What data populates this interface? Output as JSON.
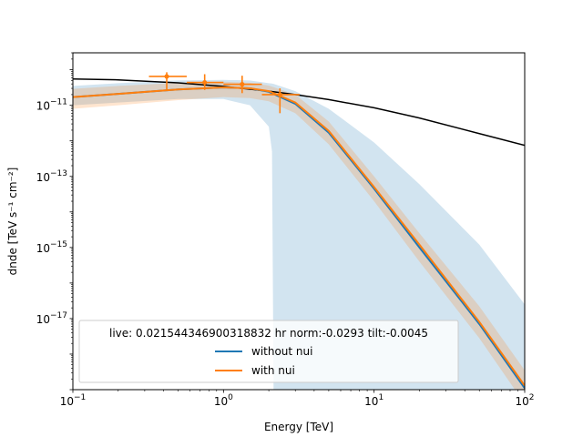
{
  "chart_data": {
    "type": "line",
    "xlabel": "Energy [TeV]",
    "ylabel": "dnde [TeV s⁻¹ cm⁻²]",
    "xscale": "log",
    "yscale": "log",
    "xlim": [
      0.1,
      100
    ],
    "ylim": [
      1e-19,
      3e-10
    ],
    "grid": false,
    "x_ticks": [
      {
        "value": 0.1,
        "base": "10",
        "exp": "−1"
      },
      {
        "value": 1,
        "base": "10",
        "exp": "0"
      },
      {
        "value": 10,
        "base": "10",
        "exp": "1"
      },
      {
        "value": 100,
        "base": "10",
        "exp": "2"
      }
    ],
    "y_ticks": [
      {
        "value": 1e-11,
        "base": "10",
        "exp": "−11"
      },
      {
        "value": 1e-13,
        "base": "10",
        "exp": "−13"
      },
      {
        "value": 1e-15,
        "base": "10",
        "exp": "−15"
      },
      {
        "value": 1e-17,
        "base": "10",
        "exp": "−17"
      }
    ],
    "legend": {
      "location": "lower-left",
      "title": "live: 0.021544346900318832 hr norm:-0.0293 tilt:-0.0045",
      "entries": [
        {
          "label": "without nui",
          "color": "#1f77b4"
        },
        {
          "label": "with nui",
          "color": "#ff7f0e"
        }
      ]
    },
    "series": [
      {
        "role": "reference",
        "color": "#000000",
        "x": [
          0.1,
          0.2,
          0.5,
          1,
          2,
          3,
          5,
          10,
          20,
          50,
          100
        ],
        "y": [
          5.5e-11,
          5.2e-11,
          4.3e-11,
          3.4e-11,
          2.5e-11,
          2e-11,
          1.45e-11,
          8.5e-12,
          4.4e-12,
          1.6e-12,
          7.5e-13
        ]
      },
      {
        "role": "without nui",
        "color": "#1f77b4",
        "x": [
          0.1,
          0.2,
          0.5,
          1,
          1.5,
          2,
          3,
          5,
          10,
          20,
          50,
          100
        ],
        "y": [
          1.7e-11,
          2.1e-11,
          2.8e-11,
          3.2e-11,
          3e-11,
          2.4e-11,
          1.1e-11,
          1.7e-12,
          4.5e-14,
          1e-15,
          7e-18,
          1.1e-19
        ]
      },
      {
        "role": "with nui",
        "color": "#ff7f0e",
        "x": [
          0.1,
          0.2,
          0.5,
          1,
          1.5,
          2,
          3,
          5,
          10,
          20,
          50,
          100
        ],
        "y": [
          1.7e-11,
          2.1e-11,
          2.8e-11,
          3.2e-11,
          3e-11,
          2.5e-11,
          1.2e-11,
          1.9e-12,
          5e-14,
          1.2e-15,
          8e-18,
          1.3e-19
        ]
      }
    ],
    "bands": [
      {
        "role": "without nui error band",
        "color": "#1f77b4",
        "opacity": 0.2,
        "x": [
          0.1,
          0.2,
          0.5,
          1,
          1.5,
          2,
          2.1,
          2.15,
          3,
          5,
          10,
          20,
          50,
          100
        ],
        "upper": [
          3.5e-11,
          4.2e-11,
          5e-11,
          5.2e-11,
          5e-11,
          4.2e-11,
          4.1e-11,
          4e-11,
          2.5e-11,
          8e-12,
          9e-13,
          6e-14,
          1.2e-15,
          2.5e-17
        ],
        "lower": [
          1e-11,
          1.2e-11,
          1.5e-11,
          1.5e-11,
          1e-11,
          2.5e-12,
          5e-13,
          1e-19,
          1e-19,
          1e-19,
          1e-19,
          1e-19,
          1e-19,
          1e-19
        ]
      },
      {
        "role": "with nui error band",
        "color": "#ff7f0e",
        "opacity": 0.2,
        "x": [
          0.1,
          0.2,
          0.5,
          1,
          1.5,
          2,
          3,
          5,
          10,
          20,
          50,
          100
        ],
        "upper": [
          2.9e-11,
          3.5e-11,
          4.3e-11,
          4.6e-11,
          4.3e-11,
          3.6e-11,
          2e-11,
          3.5e-12,
          1e-13,
          2.5e-15,
          2.2e-17,
          3.5e-19
        ],
        "lower": [
          8e-12,
          1e-11,
          1.4e-11,
          1.7e-11,
          1.6e-11,
          1.3e-11,
          6e-12,
          8e-13,
          2e-14,
          4e-16,
          2.8e-18,
          4e-20
        ]
      }
    ],
    "flux_points": [
      {
        "x": 0.42,
        "y": 6.5e-11,
        "xlo": 0.32,
        "xhi": 0.57,
        "ylo": 2.7e-11,
        "yhi": 8.5e-11,
        "color": "#ff7f0e"
      },
      {
        "x": 0.75,
        "y": 4.4e-11,
        "xlo": 0.57,
        "xhi": 1.0,
        "ylo": 2.7e-11,
        "yhi": 7.5e-11,
        "color": "#ff7f0e"
      },
      {
        "x": 1.33,
        "y": 3.9e-11,
        "xlo": 1.0,
        "xhi": 1.8,
        "ylo": 2.2e-11,
        "yhi": 6.8e-11,
        "color": "#ff7f0e"
      },
      {
        "x": 2.37,
        "y": 2e-11,
        "xlo": 1.8,
        "xhi": 3.2,
        "ylo": 6e-12,
        "yhi": 3e-11,
        "color": "#ff7f0e"
      }
    ]
  }
}
